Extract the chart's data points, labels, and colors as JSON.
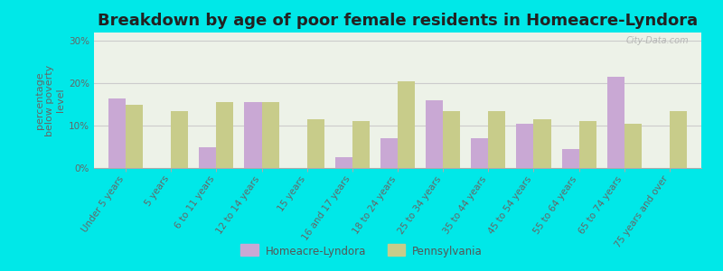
{
  "title": "Breakdown by age of poor female residents in Homeacre-Lyndora",
  "categories": [
    "Under 5 years",
    "5 years",
    "6 to 11 years",
    "12 to 14 years",
    "15 years",
    "16 and 17 years",
    "18 to 24 years",
    "25 to 34 years",
    "35 to 44 years",
    "45 to 54 years",
    "55 to 64 years",
    "65 to 74 years",
    "75 years and over"
  ],
  "homeacre_values": [
    16.5,
    0,
    5.0,
    15.5,
    0,
    2.5,
    7.0,
    16.0,
    7.0,
    10.5,
    4.5,
    21.5,
    0
  ],
  "pennsylvania_values": [
    15.0,
    13.5,
    15.5,
    15.5,
    11.5,
    11.0,
    20.5,
    13.5,
    13.5,
    11.5,
    11.0,
    10.5,
    13.5
  ],
  "homeacre_color": "#c9a8d4",
  "pennsylvania_color": "#c8cc8a",
  "background_color": "#00e8e8",
  "plot_bg_color": "#edf2e8",
  "ylabel": "percentage\nbelow poverty\nlevel",
  "ylim": [
    0,
    32
  ],
  "yticks": [
    0,
    10,
    20,
    30
  ],
  "ytick_labels": [
    "0%",
    "10%",
    "20%",
    "30%"
  ],
  "bar_width": 0.38,
  "legend_labels": [
    "Homeacre-Lyndora",
    "Pennsylvania"
  ],
  "watermark": "City-Data.com",
  "title_fontsize": 13,
  "ylabel_fontsize": 8,
  "tick_fontsize": 7.5,
  "legend_fontsize": 8.5
}
